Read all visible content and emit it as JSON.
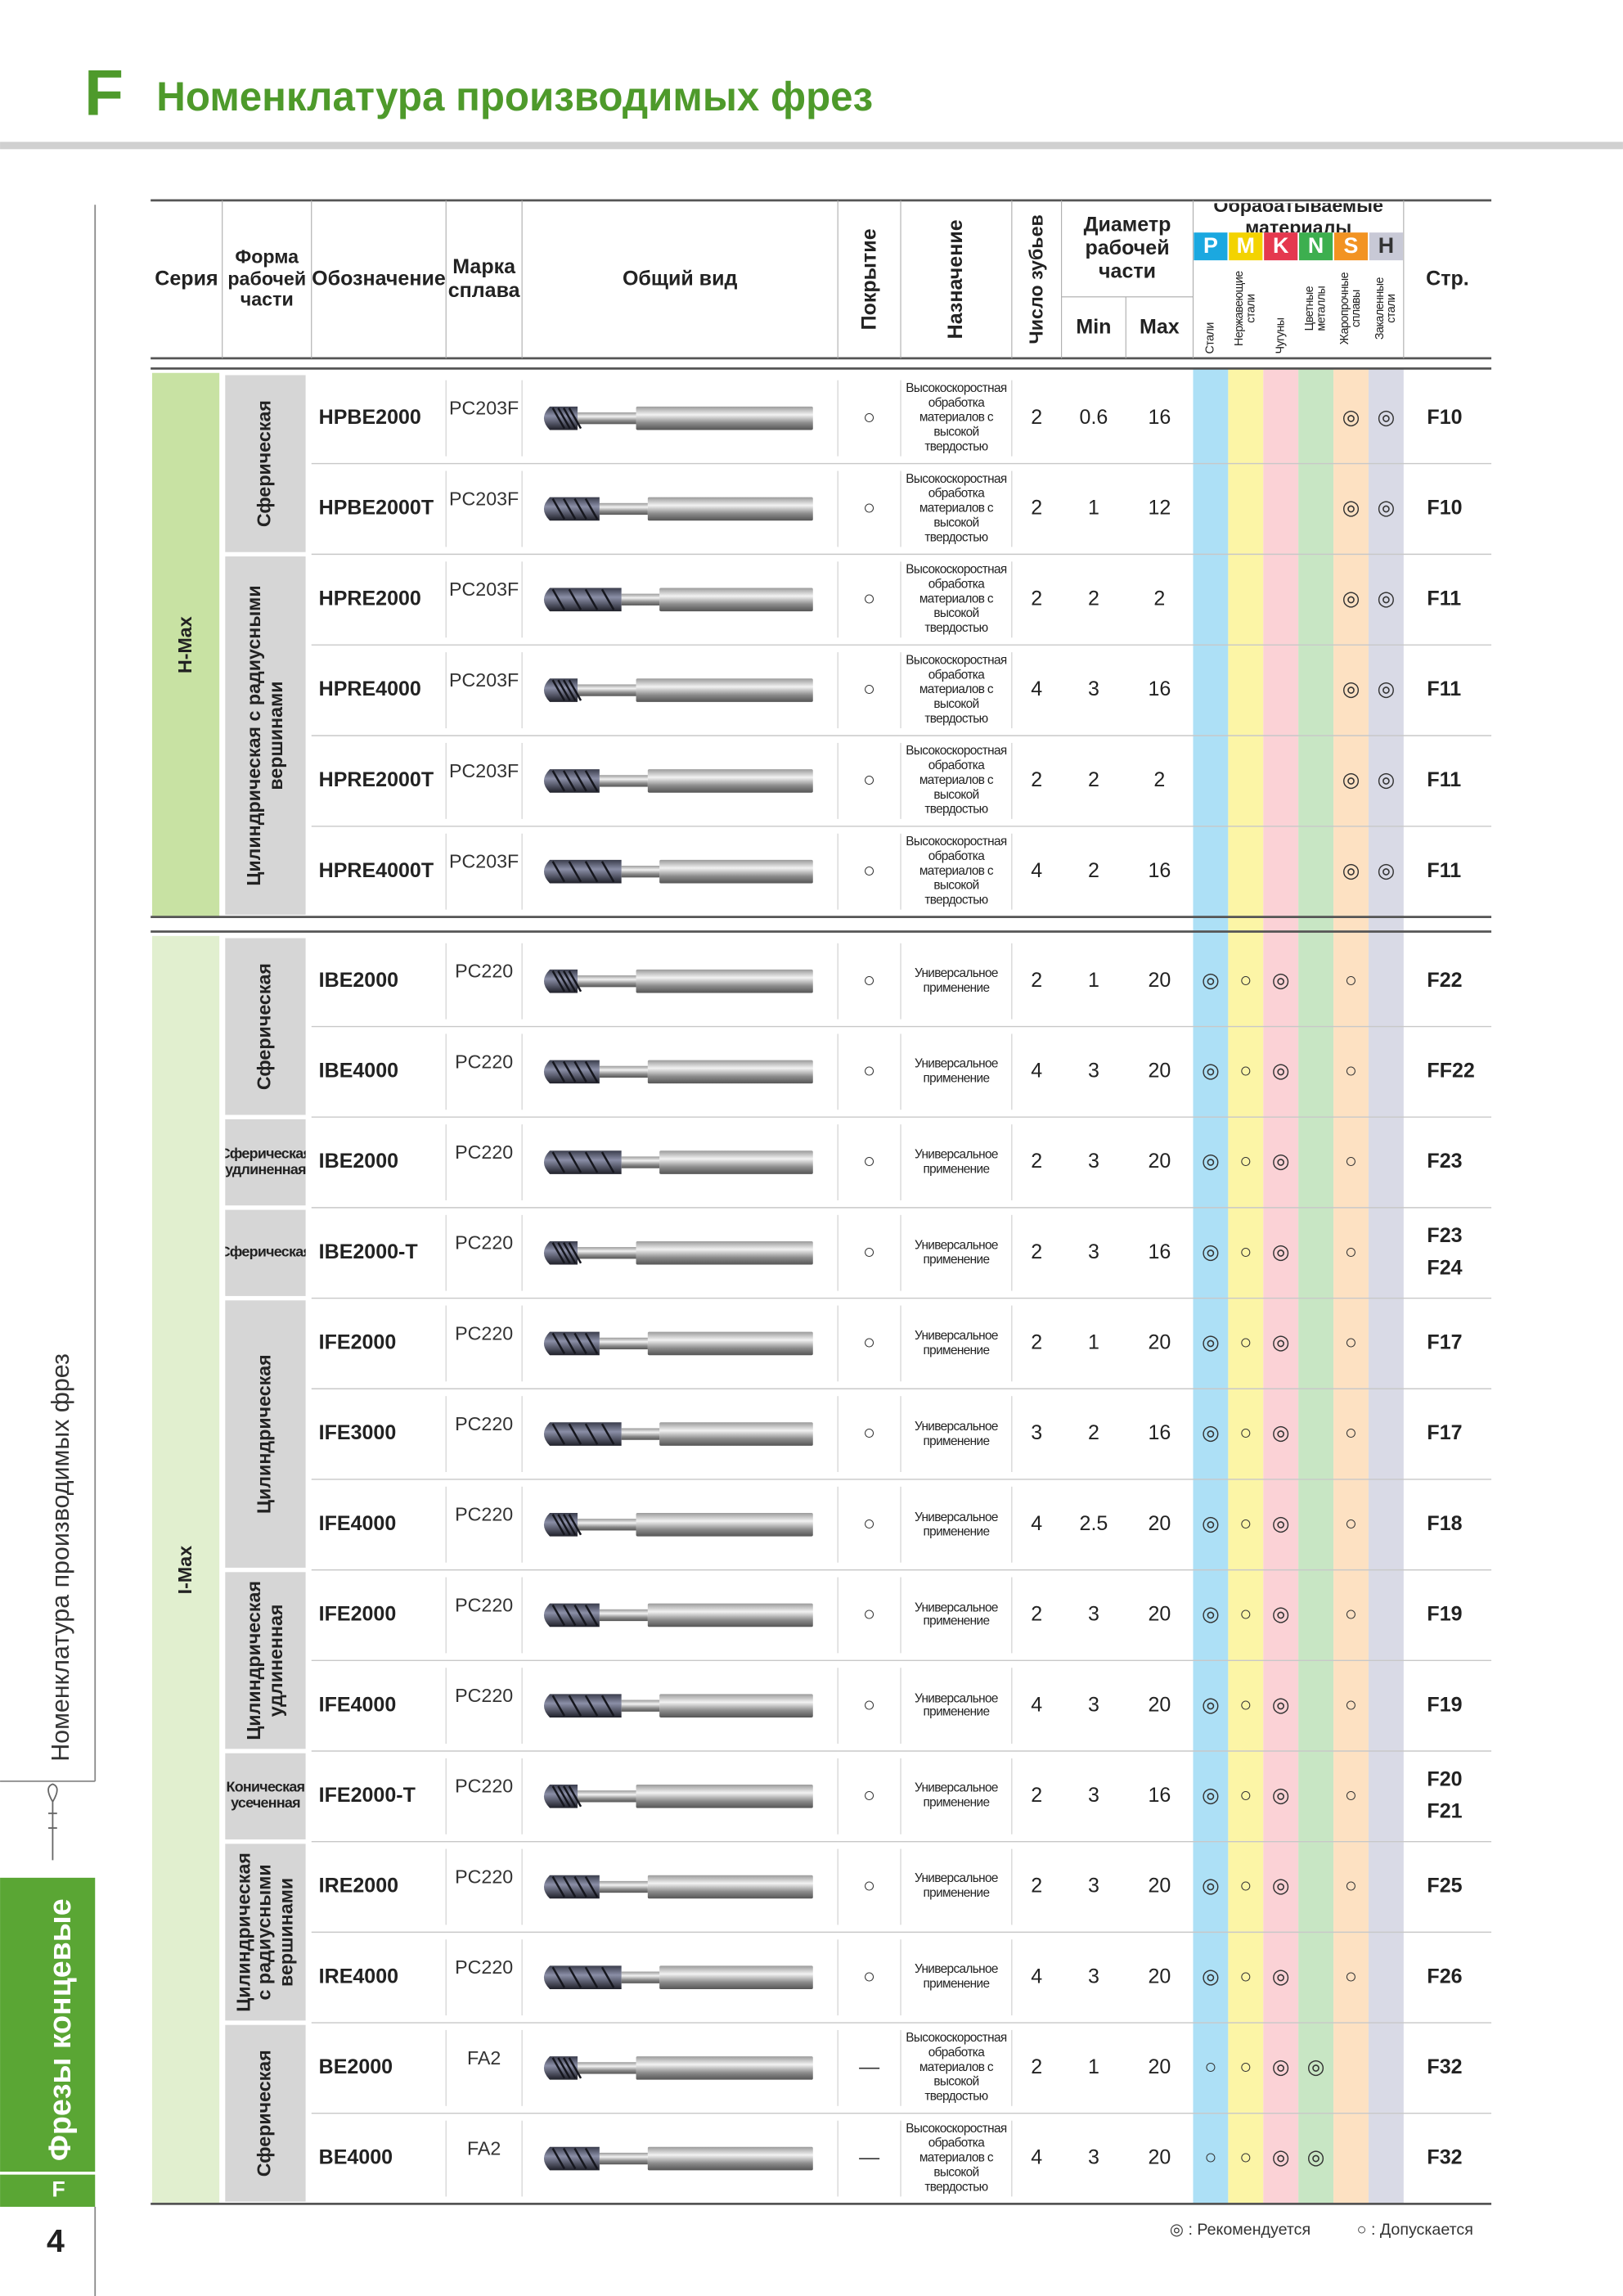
{
  "header": {
    "letter": "F",
    "title": "Номенклатура производимых фрез"
  },
  "side": {
    "section": "Номенклатура производимых фрез",
    "tab": "Фрезы концевые",
    "tab_letter": "F",
    "page_number": "4"
  },
  "table": {
    "columns": {
      "series": "Серия",
      "shape": "Форма рабочей части",
      "designation": "Обозначение",
      "grade": "Марка сплава",
      "view": "Общий вид",
      "coating": "Покрытие",
      "purpose": "Назначение",
      "teeth": "Число зубьев",
      "diameter": "Диаметр рабочей части",
      "min": "Min",
      "max": "Max",
      "materials": "Обрабатываемые материалы",
      "page": "Стр."
    },
    "materials": [
      {
        "letter": "P",
        "name": "Стали",
        "color": "#1ba8e0",
        "tint": "#ade0f6"
      },
      {
        "letter": "M",
        "name": "Нержавеющие стали",
        "color": "#f3d300",
        "tint": "#fcf5a6"
      },
      {
        "letter": "K",
        "name": "Чугуны",
        "color": "#e5384f",
        "tint": "#fbd2d6"
      },
      {
        "letter": "N",
        "name": "Цветные металлы",
        "color": "#3daf4f",
        "tint": "#c8e6c4"
      },
      {
        "letter": "S",
        "name": "Жаропрочные сплавы",
        "color": "#f29322",
        "tint": "#fde1c2"
      },
      {
        "letter": "H",
        "name": "Закаленные стали",
        "color": "#c8c9d6",
        "tint": "#d9dae6"
      }
    ],
    "groups": [
      {
        "name": "H-Max",
        "shapes": [
          {
            "name": "Сферическая",
            "rows": [
              {
                "designation": "HPBE2000",
                "grade": "PC203F",
                "coating": "○",
                "purpose": "Высокоскоростная обработка материалов с высокой твердостью",
                "teeth": 2,
                "min": 0.6,
                "max": 16,
                "marks": {
                  "S": "◎",
                  "H": "◎"
                },
                "pages": [
                  "F10"
                ]
              },
              {
                "designation": "HPBE2000T",
                "grade": "PC203F",
                "coating": "○",
                "purpose": "Высокоскоростная обработка материалов с высокой твердостью",
                "teeth": 2,
                "min": 1,
                "max": 12,
                "marks": {
                  "S": "◎",
                  "H": "◎"
                },
                "pages": [
                  "F10"
                ]
              }
            ]
          },
          {
            "name": "Цилиндрическая с радиусными вершинами",
            "rows": [
              {
                "designation": "HPRE2000",
                "grade": "PC203F",
                "coating": "○",
                "purpose": "Высокоскоростная обработка материалов с высокой твердостью",
                "teeth": 2,
                "min": 2,
                "max": 2,
                "marks": {
                  "S": "◎",
                  "H": "◎"
                },
                "pages": [
                  "F11"
                ]
              },
              {
                "designation": "HPRE4000",
                "grade": "PC203F",
                "coating": "○",
                "purpose": "Высокоскоростная обработка материалов с высокой твердостью",
                "teeth": 4,
                "min": 3,
                "max": 16,
                "marks": {
                  "S": "◎",
                  "H": "◎"
                },
                "pages": [
                  "F11"
                ]
              },
              {
                "designation": "HPRE2000T",
                "grade": "PC203F",
                "coating": "○",
                "purpose": "Высокоскоростная обработка материалов с высокой твердостью",
                "teeth": 2,
                "min": 2,
                "max": 2,
                "marks": {
                  "S": "◎",
                  "H": "◎"
                },
                "pages": [
                  "F11"
                ]
              },
              {
                "designation": "HPRE4000T",
                "grade": "PC203F",
                "coating": "○",
                "purpose": "Высокоскоростная обработка материалов с высокой твердостью",
                "teeth": 4,
                "min": 2,
                "max": 16,
                "marks": {
                  "S": "◎",
                  "H": "◎"
                },
                "pages": [
                  "F11"
                ]
              }
            ]
          }
        ]
      },
      {
        "name": "I-Max",
        "shapes": [
          {
            "name": "Сферическая",
            "rows": [
              {
                "designation": "IBE2000",
                "grade": "PC220",
                "coating": "○",
                "purpose": "Универсальное применение",
                "teeth": 2,
                "min": 1,
                "max": 20,
                "marks": {
                  "P": "◎",
                  "M": "○",
                  "K": "◎",
                  "S": "○"
                },
                "pages": [
                  "F22"
                ]
              },
              {
                "designation": "IBE4000",
                "grade": "PC220",
                "coating": "○",
                "purpose": "Универсальное применение",
                "teeth": 4,
                "min": 3,
                "max": 20,
                "marks": {
                  "P": "◎",
                  "M": "○",
                  "K": "◎",
                  "S": "○"
                },
                "pages": [
                  "FF22"
                ]
              }
            ]
          },
          {
            "name": "Сферическая удлиненная",
            "rows": [
              {
                "designation": "IBE2000",
                "grade": "PC220",
                "coating": "○",
                "purpose": "Универсальное применение",
                "teeth": 2,
                "min": 3,
                "max": 20,
                "marks": {
                  "P": "◎",
                  "M": "○",
                  "K": "◎",
                  "S": "○"
                },
                "pages": [
                  "F23"
                ]
              }
            ]
          },
          {
            "name": "Сферическая",
            "rows": [
              {
                "designation": "IBE2000-T",
                "grade": "PC220",
                "coating": "○",
                "purpose": "Универсальное применение",
                "teeth": 2,
                "min": 3,
                "max": 16,
                "marks": {
                  "P": "◎",
                  "M": "○",
                  "K": "◎",
                  "S": "○"
                },
                "pages": [
                  "F23",
                  "F24"
                ]
              }
            ]
          },
          {
            "name": "Цилиндрическая",
            "rows": [
              {
                "designation": "IFE2000",
                "grade": "PC220",
                "coating": "○",
                "purpose": "Универсальное применение",
                "teeth": 2,
                "min": 1,
                "max": 20,
                "marks": {
                  "P": "◎",
                  "M": "○",
                  "K": "◎",
                  "S": "○"
                },
                "pages": [
                  "F17"
                ]
              },
              {
                "designation": "IFE3000",
                "grade": "PC220",
                "coating": "○",
                "purpose": "Универсальное применение",
                "teeth": 3,
                "min": 2,
                "max": 16,
                "marks": {
                  "P": "◎",
                  "M": "○",
                  "K": "◎",
                  "S": "○"
                },
                "pages": [
                  "F17"
                ]
              },
              {
                "designation": "IFE4000",
                "grade": "PC220",
                "coating": "○",
                "purpose": "Универсальное применение",
                "teeth": 4,
                "min": 2.5,
                "max": 20,
                "marks": {
                  "P": "◎",
                  "M": "○",
                  "K": "◎",
                  "S": "○"
                },
                "pages": [
                  "F18"
                ]
              }
            ]
          },
          {
            "name": "Цилиндрическая удлиненная",
            "rows": [
              {
                "designation": "IFE2000",
                "grade": "PC220",
                "coating": "○",
                "purpose": "Универсальное применение",
                "teeth": 2,
                "min": 3,
                "max": 20,
                "marks": {
                  "P": "◎",
                  "M": "○",
                  "K": "◎",
                  "S": "○"
                },
                "pages": [
                  "F19"
                ]
              },
              {
                "designation": "IFE4000",
                "grade": "PC220",
                "coating": "○",
                "purpose": "Универсальное применение",
                "teeth": 4,
                "min": 3,
                "max": 20,
                "marks": {
                  "P": "◎",
                  "M": "○",
                  "K": "◎",
                  "S": "○"
                },
                "pages": [
                  "F19"
                ]
              }
            ]
          },
          {
            "name": "Коническая усеченная",
            "rows": [
              {
                "designation": "IFE2000-T",
                "grade": "PC220",
                "coating": "○",
                "purpose": "Универсальное применение",
                "teeth": 2,
                "min": 3,
                "max": 16,
                "marks": {
                  "P": "◎",
                  "M": "○",
                  "K": "◎",
                  "S": "○"
                },
                "pages": [
                  "F20",
                  "F21"
                ]
              }
            ]
          },
          {
            "name": "Цилиндрическая с радиусными вершинами",
            "rows": [
              {
                "designation": "IRE2000",
                "grade": "PC220",
                "coating": "○",
                "purpose": "Универсальное применение",
                "teeth": 2,
                "min": 3,
                "max": 20,
                "marks": {
                  "P": "◎",
                  "M": "○",
                  "K": "◎",
                  "S": "○"
                },
                "pages": [
                  "F25"
                ]
              },
              {
                "designation": "IRE4000",
                "grade": "PC220",
                "coating": "○",
                "purpose": "Универсальное применение",
                "teeth": 4,
                "min": 3,
                "max": 20,
                "marks": {
                  "P": "◎",
                  "M": "○",
                  "K": "◎",
                  "S": "○"
                },
                "pages": [
                  "F26"
                ]
              }
            ]
          },
          {
            "name": "Сферическая",
            "rows": [
              {
                "designation": "BE2000",
                "grade": "FA2",
                "coating": "—",
                "purpose": "Высокоскоростная обработка материалов с высокой твердостью",
                "teeth": 2,
                "min": 1,
                "max": 20,
                "marks": {
                  "P": "○",
                  "M": "○",
                  "K": "◎",
                  "N": "◎"
                },
                "pages": [
                  "F32"
                ]
              },
              {
                "designation": "BE4000",
                "grade": "FA2",
                "coating": "—",
                "purpose": "Высокоскоростная обработка материалов с высокой твердостью",
                "teeth": 4,
                "min": 3,
                "max": 20,
                "marks": {
                  "P": "○",
                  "M": "○",
                  "K": "◎",
                  "N": "◎"
                },
                "pages": [
                  "F32"
                ]
              }
            ]
          }
        ]
      }
    ]
  },
  "legend": [
    "◎ : Рекомендуется",
    "○ : Допускается"
  ]
}
